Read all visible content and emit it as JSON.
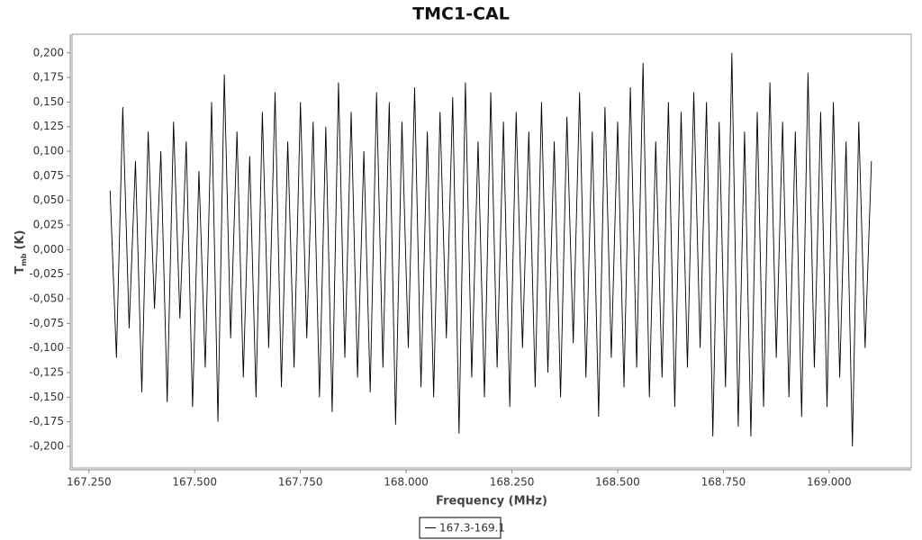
{
  "chart_data": {
    "type": "line",
    "title": "TMC1-CAL",
    "xlabel": "Frequency (MHz)",
    "ylabel": {
      "main": "T",
      "sub": "mb",
      "unit": "(K)"
    },
    "xlim": [
      167.21,
      169.194
    ],
    "ylim": [
      -0.222,
      0.219
    ],
    "xticks": [
      {
        "value": 167.25,
        "label": "167.250"
      },
      {
        "value": 167.5,
        "label": "167.500"
      },
      {
        "value": 167.75,
        "label": "167.750"
      },
      {
        "value": 168,
        "label": "168.000"
      },
      {
        "value": 168.25,
        "label": "168.250"
      },
      {
        "value": 168.5,
        "label": "168.500"
      },
      {
        "value": 168.75,
        "label": "168.750"
      },
      {
        "value": 169,
        "label": "169.000"
      }
    ],
    "yticks": [
      {
        "value": 0.2,
        "label": "0,200"
      },
      {
        "value": 0.175,
        "label": "0,175"
      },
      {
        "value": 0.15,
        "label": "0,150"
      },
      {
        "value": 0.125,
        "label": "0,125"
      },
      {
        "value": 0.1,
        "label": "0,100"
      },
      {
        "value": 0.075,
        "label": "0,075"
      },
      {
        "value": 0.05,
        "label": "0,050"
      },
      {
        "value": 0.025,
        "label": "0,025"
      },
      {
        "value": 0,
        "label": "0,000"
      },
      {
        "value": -0.025,
        "label": "-0,025"
      },
      {
        "value": -0.05,
        "label": "-0,050"
      },
      {
        "value": -0.075,
        "label": "-0,075"
      },
      {
        "value": -0.1,
        "label": "-0,100"
      },
      {
        "value": -0.125,
        "label": "-0,125"
      },
      {
        "value": -0.15,
        "label": "-0,150"
      },
      {
        "value": -0.175,
        "label": "-0,175"
      },
      {
        "value": -0.2,
        "label": "-0,200"
      }
    ],
    "series": [
      {
        "name": "167.3-169.1",
        "color": "#000000",
        "x": [
          167.3,
          167.315,
          167.33,
          167.345,
          167.36,
          167.375,
          167.39,
          167.405,
          167.42,
          167.435,
          167.45,
          167.465,
          167.48,
          167.495,
          167.51,
          167.525,
          167.54,
          167.555,
          167.57,
          167.585,
          167.6,
          167.615,
          167.63,
          167.645,
          167.66,
          167.675,
          167.69,
          167.705,
          167.72,
          167.735,
          167.75,
          167.765,
          167.78,
          167.795,
          167.81,
          167.825,
          167.84,
          167.855,
          167.87,
          167.885,
          167.9,
          167.915,
          167.93,
          167.945,
          167.96,
          167.975,
          167.99,
          168.005,
          168.02,
          168.035,
          168.05,
          168.065,
          168.08,
          168.095,
          168.11,
          168.125,
          168.14,
          168.155,
          168.17,
          168.185,
          168.2,
          168.215,
          168.23,
          168.245,
          168.26,
          168.275,
          168.29,
          168.305,
          168.32,
          168.335,
          168.35,
          168.365,
          168.38,
          168.395,
          168.41,
          168.425,
          168.44,
          168.455,
          168.47,
          168.485,
          168.5,
          168.515,
          168.53,
          168.545,
          168.56,
          168.575,
          168.59,
          168.605,
          168.62,
          168.635,
          168.65,
          168.665,
          168.68,
          168.695,
          168.71,
          168.725,
          168.74,
          168.755,
          168.77,
          168.785,
          168.8,
          168.815,
          168.83,
          168.845,
          168.86,
          168.875,
          168.89,
          168.905,
          168.92,
          168.935,
          168.95,
          168.965,
          168.98,
          168.995,
          169.01,
          169.025,
          169.04,
          169.055,
          169.07,
          169.085,
          169.1
        ],
        "values": [
          0.06,
          -0.11,
          0.145,
          -0.08,
          0.09,
          -0.145,
          0.12,
          -0.06,
          0.1,
          -0.155,
          0.13,
          -0.07,
          0.11,
          -0.16,
          0.08,
          -0.12,
          0.15,
          -0.175,
          0.178,
          -0.09,
          0.12,
          -0.13,
          0.095,
          -0.15,
          0.14,
          -0.1,
          0.16,
          -0.14,
          0.11,
          -0.12,
          0.15,
          -0.09,
          0.13,
          -0.15,
          0.125,
          -0.165,
          0.17,
          -0.11,
          0.14,
          -0.13,
          0.1,
          -0.145,
          0.16,
          -0.12,
          0.15,
          -0.178,
          0.13,
          -0.1,
          0.165,
          -0.14,
          0.12,
          -0.15,
          0.14,
          -0.09,
          0.155,
          -0.187,
          0.17,
          -0.13,
          0.11,
          -0.15,
          0.16,
          -0.12,
          0.13,
          -0.16,
          0.14,
          -0.1,
          0.12,
          -0.14,
          0.15,
          -0.125,
          0.11,
          -0.15,
          0.135,
          -0.095,
          0.16,
          -0.13,
          0.12,
          -0.17,
          0.145,
          -0.11,
          0.13,
          -0.14,
          0.165,
          -0.12,
          0.19,
          -0.15,
          0.11,
          -0.13,
          0.15,
          -0.16,
          0.14,
          -0.12,
          0.16,
          -0.1,
          0.15,
          -0.19,
          0.13,
          -0.14,
          0.2,
          -0.18,
          0.12,
          -0.19,
          0.14,
          -0.16,
          0.17,
          -0.11,
          0.13,
          -0.15,
          0.12,
          -0.17,
          0.18,
          -0.12,
          0.14,
          -0.16,
          0.15,
          -0.13,
          0.11,
          -0.2,
          0.13,
          -0.1,
          0.09
        ]
      }
    ]
  }
}
